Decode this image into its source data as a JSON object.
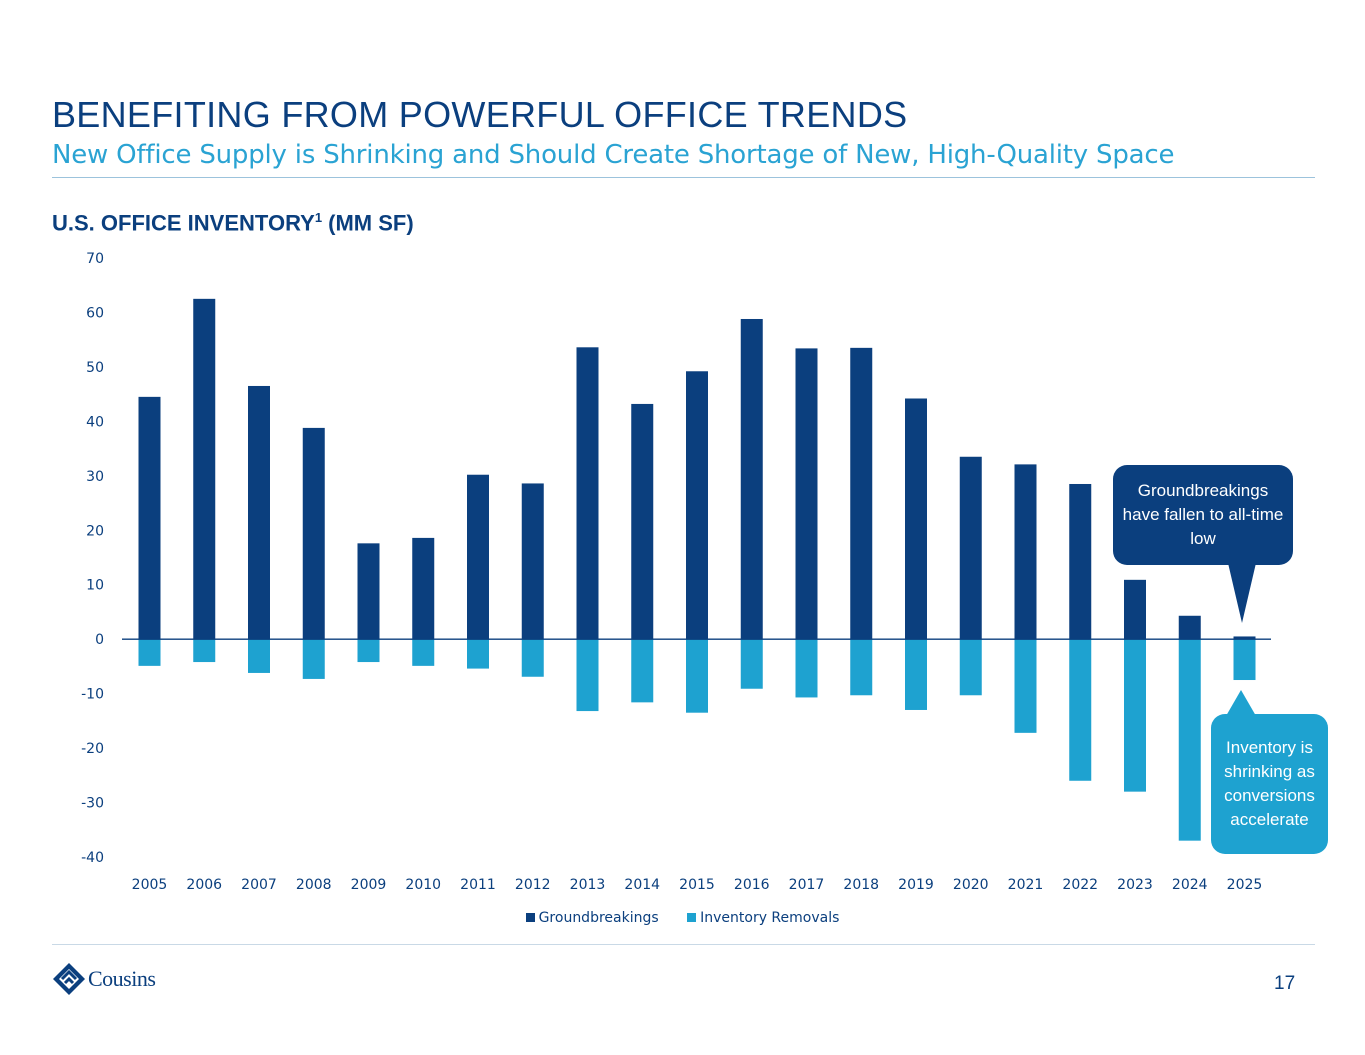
{
  "slide": {
    "title": "BENEFITING FROM POWERFUL OFFICE TRENDS",
    "subtitle": "New Office Supply is Shrinking and Should Create Shortage of New, High-Quality Space",
    "chart_heading": "U.S. OFFICE INVENTORY",
    "chart_heading_footnote": "1",
    "chart_heading_unit": " (MM SF)",
    "callout_groundbreakings": "Groundbreakings have fallen to all-time low",
    "callout_inventory": "Inventory is shrinking as conversions accelerate",
    "logo_text": "Cousins",
    "page_number": "17",
    "colors": {
      "navy": "#0b3f7e",
      "cyan": "#1ea2d0"
    }
  },
  "chart_data": {
    "type": "bar",
    "title": "U.S. OFFICE INVENTORY1 (MM SF)",
    "categories": [
      "2005",
      "2006",
      "2007",
      "2008",
      "2009",
      "2010",
      "2011",
      "2012",
      "2013",
      "2014",
      "2015",
      "2016",
      "2017",
      "2018",
      "2019",
      "2020",
      "2021",
      "2022",
      "2023",
      "2024",
      "2025"
    ],
    "series": [
      {
        "name": "Groundbreakings",
        "color": "#0b3f7e",
        "values": [
          44.5,
          62.5,
          46.5,
          38.8,
          17.6,
          18.6,
          30.2,
          28.6,
          53.6,
          43.2,
          49.2,
          58.8,
          53.4,
          53.5,
          44.2,
          33.5,
          32.1,
          28.5,
          10.9,
          4.3,
          0.5
        ]
      },
      {
        "name": "Inventory Removals",
        "color": "#1ea2d0",
        "values": [
          -4.9,
          -4.2,
          -6.2,
          -7.3,
          -4.2,
          -4.9,
          -5.4,
          -6.9,
          -13.2,
          -11.6,
          -13.5,
          -9.1,
          -10.7,
          -10.3,
          -13.0,
          -10.3,
          -17.2,
          -26.0,
          -28.0,
          -37.0,
          -7.5
        ]
      }
    ],
    "yticks": [
      "70",
      "60",
      "50",
      "40",
      "30",
      "20",
      "10",
      "0",
      "-10",
      "-20",
      "-30",
      "-40"
    ],
    "ylim": [
      -40,
      70
    ],
    "grid": false,
    "legend_position": "bottom"
  }
}
